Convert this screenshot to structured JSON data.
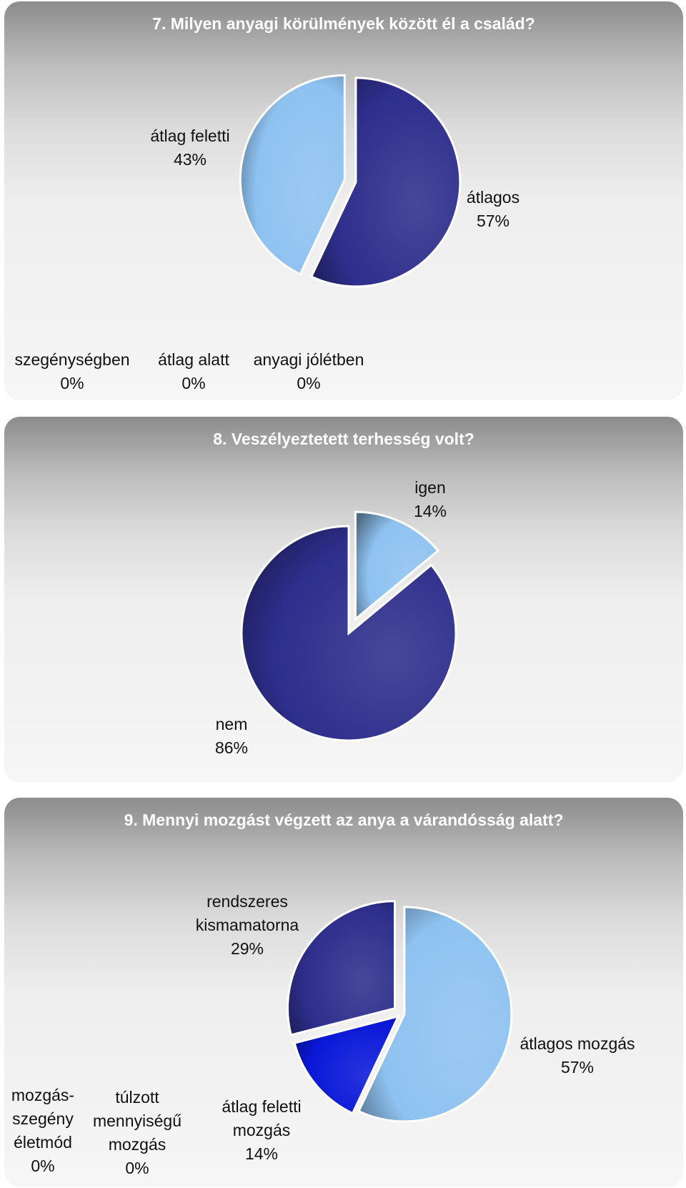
{
  "chart_data": [
    {
      "type": "pie",
      "title": "7. Milyen anyagi körülmények között él a család?",
      "slices": [
        {
          "label": "átlagos",
          "value": 57,
          "value_label": "57%",
          "color": "#2e2e8c"
        },
        {
          "label": "átlag feletti",
          "value": 43,
          "value_label": "43%",
          "color": "#8ec2f0"
        },
        {
          "label": "szegénységben",
          "value": 0,
          "value_label": "0%"
        },
        {
          "label": "átlag alatt",
          "value": 0,
          "value_label": "0%"
        },
        {
          "label": "anyagi jólétben",
          "value": 0,
          "value_label": "0%"
        }
      ]
    },
    {
      "type": "pie",
      "title": "8. Veszélyeztetett terhesség volt?",
      "slices": [
        {
          "label": "igen",
          "value": 14,
          "value_label": "14%",
          "color": "#8ec2f0"
        },
        {
          "label": "nem",
          "value": 86,
          "value_label": "86%",
          "color": "#2e2e8c"
        }
      ]
    },
    {
      "type": "pie",
      "title": "9. Mennyi mozgást végzett az anya a várandósság alatt?",
      "slices": [
        {
          "label": "átlagos mozgás",
          "value": 57,
          "value_label": "57%",
          "color": "#8ec2f0"
        },
        {
          "label": "átlag feletti mozgás",
          "value": 14,
          "value_label": "14%",
          "color": "#0a18d8"
        },
        {
          "label": "rendszeres kismamatorna",
          "value": 29,
          "value_label": "29%",
          "color": "#2e2e8c"
        },
        {
          "label": "túlzott mennyiségű mozgás",
          "value": 0,
          "value_label": "0%"
        },
        {
          "label": "mozgásszegény életmód",
          "value": 0,
          "value_label": "0%"
        }
      ]
    }
  ],
  "labels": {
    "c7": {
      "atlag_feletti": [
        "átlag feletti",
        "43%"
      ],
      "atlagos": [
        "átlagos",
        "57%"
      ],
      "szegenysegben": [
        "szegénységben",
        "0%"
      ],
      "atlag_alatt": [
        "átlag alatt",
        "0%"
      ],
      "anyagi_joletben": [
        "anyagi jólétben",
        "0%"
      ]
    },
    "c8": {
      "igen": [
        "igen",
        "14%"
      ],
      "nem": [
        "nem",
        "86%"
      ]
    },
    "c9": {
      "rendszeres": [
        "rendszeres",
        "kismamatorna",
        "29%"
      ],
      "atlagos_mozgas": [
        "átlagos mozgás",
        "57%"
      ],
      "mozgasszegeny": [
        "mozgás-",
        "szegény",
        "életmód",
        "0%"
      ],
      "tulzott": [
        "túlzott",
        "mennyiségű",
        "mozgás",
        "0%"
      ],
      "atlag_feletti_mozgas": [
        "átlag feletti",
        "mozgás",
        "14%"
      ]
    }
  }
}
